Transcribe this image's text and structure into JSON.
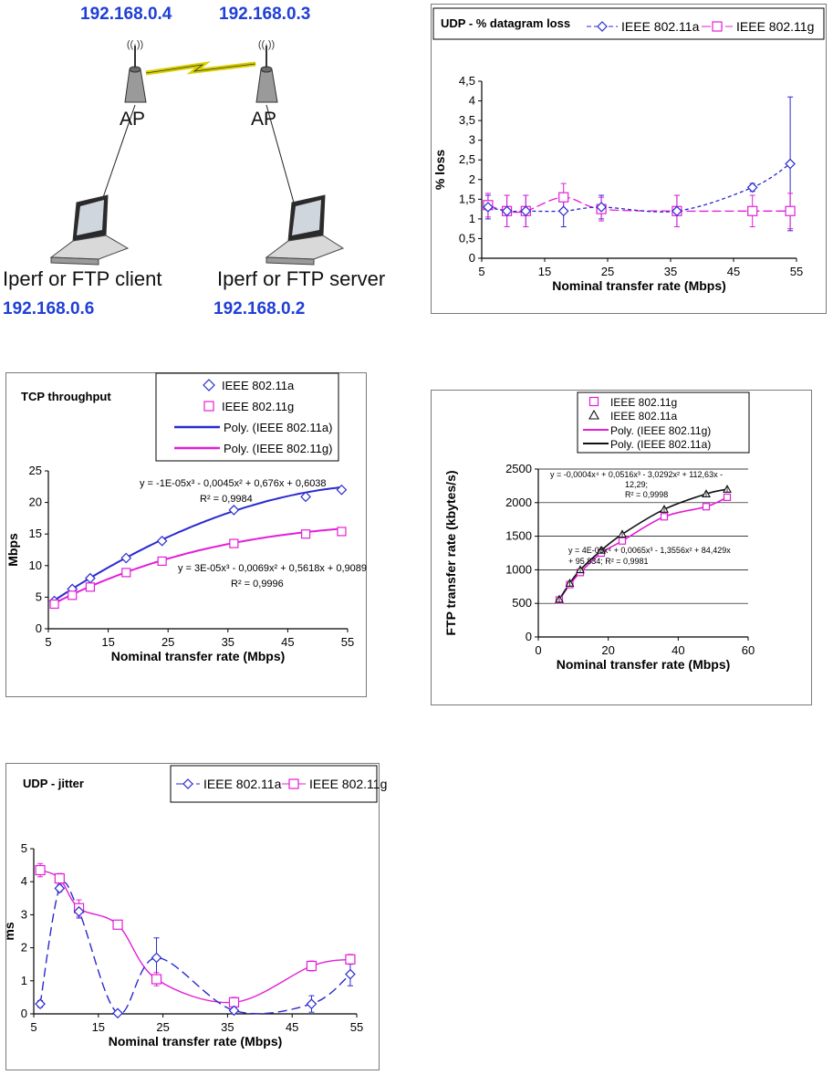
{
  "network": {
    "ap_left_ip": "192.168.0.4",
    "ap_right_ip": "192.168.0.3",
    "ap_label": "AP",
    "client_label": "Iperf or FTP client",
    "server_label": "Iperf or FTP server",
    "client_ip": "192.168.0.6",
    "server_ip": "192.168.0.2"
  },
  "colors": {
    "a_series": "#2a2ad0",
    "g_series": "#e21fd6",
    "black": "#111111",
    "ip_blue": "#1f3fd6"
  },
  "chart_data": [
    {
      "id": "udp_loss",
      "type": "line",
      "title": "UDP - % datagram loss",
      "xlabel": "Nominal transfer rate (Mbps)",
      "ylabel": "% loss",
      "xlim": [
        5,
        55
      ],
      "ylim": [
        0,
        4.5
      ],
      "xticks": [
        "5",
        "15",
        "25",
        "35",
        "45",
        "55"
      ],
      "yticks": [
        "0",
        "0,5",
        "1",
        "1,5",
        "2",
        "2,5",
        "3",
        "3,5",
        "4",
        "4,5"
      ],
      "legend": [
        "IEEE 802.11a",
        "IEEE 802.11g"
      ],
      "series": [
        {
          "name": "IEEE 802.11a",
          "x": [
            6,
            9,
            12,
            18,
            24,
            36,
            48,
            54
          ],
          "values": [
            1.3,
            1.2,
            1.2,
            1.2,
            1.3,
            1.2,
            1.8,
            2.4
          ],
          "err": [
            0.3,
            0.4,
            0.4,
            0.4,
            0.3,
            0.4,
            0.1,
            1.7
          ]
        },
        {
          "name": "IEEE 802.11g",
          "x": [
            6,
            9,
            12,
            18,
            24,
            36,
            48,
            54
          ],
          "values": [
            1.35,
            1.2,
            1.2,
            1.55,
            1.25,
            1.2,
            1.2,
            1.2
          ],
          "err": [
            0.3,
            0.4,
            0.4,
            0.35,
            0.3,
            0.4,
            0.4,
            0.45
          ]
        }
      ]
    },
    {
      "id": "tcp_throughput",
      "type": "scatter",
      "title": "TCP throughput",
      "xlabel": "Nominal transfer rate (Mbps)",
      "ylabel": "Mbps",
      "xlim": [
        5,
        55
      ],
      "ylim": [
        0,
        25
      ],
      "xticks": [
        "5",
        "15",
        "25",
        "35",
        "45",
        "55"
      ],
      "yticks": [
        "0",
        "5",
        "10",
        "15",
        "20",
        "25"
      ],
      "legend": [
        "IEEE 802.11a",
        "IEEE 802.11g",
        "Poly. (IEEE 802.11a)",
        "Poly. (IEEE 802.11g)"
      ],
      "eq_a": "y = -1E-05x³ - 0,0045x² + 0,676x + 0,6038",
      "r2_a": "R² = 0,9984",
      "eq_g": "y = 3E-05x³ - 0,0069x² + 0,5618x + 0,9089",
      "r2_g": "R² = 0,9996",
      "series": [
        {
          "name": "IEEE 802.11a",
          "x": [
            6,
            9,
            12,
            18,
            24,
            36,
            48,
            54
          ],
          "values": [
            4.4,
            6.3,
            8.0,
            11.2,
            13.9,
            18.8,
            20.9,
            22.0
          ]
        },
        {
          "name": "IEEE 802.11g",
          "x": [
            6,
            9,
            12,
            18,
            24,
            36,
            48,
            54
          ],
          "values": [
            3.9,
            5.3,
            6.6,
            8.9,
            10.7,
            13.5,
            15.0,
            15.4
          ]
        }
      ]
    },
    {
      "id": "ftp_rate",
      "type": "scatter",
      "title": "",
      "xlabel": "Nominal transfer rate (Mbps)",
      "ylabel": "FTP transfer rate (kbytes/s)",
      "xlim": [
        0,
        60
      ],
      "ylim": [
        0,
        2500
      ],
      "xticks": [
        "0",
        "20",
        "40",
        "60"
      ],
      "yticks": [
        "0",
        "500",
        "1000",
        "1500",
        "2000",
        "2500"
      ],
      "legend": [
        "IEEE 802.11g",
        "IEEE 802.11a",
        "Poly. (IEEE 802.11g)",
        "Poly. (IEEE 802.11a)"
      ],
      "eq_a1": "y = -0,0004x⁴ + 0,0516x³ - 3,0292x² + 112,63x -",
      "eq_a2": "12,29;",
      "r2_a": "R² = 0,9998",
      "eq_g1": "y = 4E-05x⁴ + 0,0065x³ - 1,3556x² + 84,429x",
      "eq_g2": "+ 95,834; R² = 0,9981",
      "series": [
        {
          "name": "IEEE 802.11g",
          "x": [
            6,
            9,
            12,
            18,
            24,
            36,
            48,
            54
          ],
          "values": [
            550,
            780,
            960,
            1250,
            1430,
            1790,
            1940,
            2080
          ]
        },
        {
          "name": "IEEE 802.11a",
          "x": [
            6,
            9,
            12,
            18,
            24,
            36,
            48,
            54
          ],
          "values": [
            560,
            800,
            1000,
            1290,
            1530,
            1900,
            2130,
            2200
          ]
        }
      ]
    },
    {
      "id": "udp_jitter",
      "type": "line",
      "title": "UDP - jitter",
      "xlabel": "Nominal transfer rate (Mbps)",
      "ylabel": "ms",
      "xlim": [
        5,
        55
      ],
      "ylim": [
        0,
        5
      ],
      "xticks": [
        "5",
        "15",
        "25",
        "35",
        "45",
        "55"
      ],
      "yticks": [
        "0",
        "1",
        "2",
        "3",
        "4",
        "5"
      ],
      "legend": [
        "IEEE 802.11a",
        "IEEE 802.11g"
      ],
      "series": [
        {
          "name": "IEEE 802.11a",
          "x": [
            6,
            9,
            12,
            18,
            24,
            36,
            48,
            54
          ],
          "values": [
            0.3,
            3.8,
            3.1,
            0.02,
            1.7,
            0.1,
            0.3,
            1.2
          ],
          "err": [
            0.1,
            0.1,
            0.2,
            0.05,
            0.6,
            0.1,
            0.25,
            0.35
          ]
        },
        {
          "name": "IEEE 802.11g",
          "x": [
            6,
            9,
            12,
            18,
            24,
            36,
            48,
            54
          ],
          "values": [
            4.35,
            4.1,
            3.2,
            2.7,
            1.05,
            0.35,
            1.45,
            1.65
          ],
          "err": [
            0.2,
            0.15,
            0.25,
            0.1,
            0.2,
            0.15,
            0.15,
            0.15
          ]
        }
      ]
    }
  ]
}
